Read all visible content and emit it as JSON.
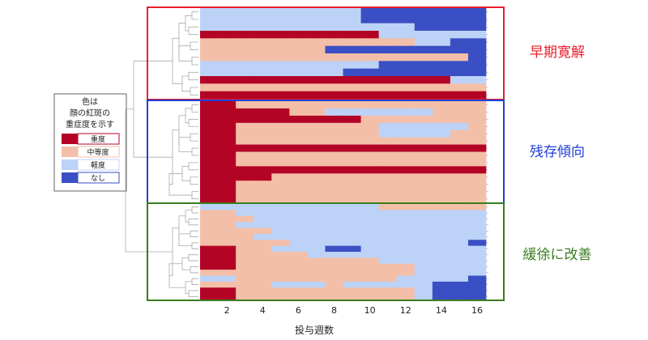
{
  "chart_data": {
    "type": "heatmap",
    "xlabel": "投与週数",
    "x_ticks": [
      "2",
      "4",
      "6",
      "8",
      "10",
      "12",
      "14",
      "16"
    ],
    "columns": 16,
    "legend": {
      "title_lines": [
        "色は",
        "顔の紅斑の",
        "重症度を示す"
      ],
      "items": [
        {
          "label": "重度",
          "level": 3
        },
        {
          "label": "中等度",
          "level": 2
        },
        {
          "label": "軽度",
          "level": 1
        },
        {
          "label": "なし",
          "level": 0
        }
      ]
    },
    "colors": {
      "level_0": "#3b4fc4",
      "level_1": "#bcd3f7",
      "level_2": "#f4bfa8",
      "level_3": "#b40426"
    },
    "groups": [
      {
        "label": "早期寛解",
        "color": "#e8202a",
        "rows": [
          [
            1,
            1,
            1,
            1,
            1,
            1,
            1,
            1,
            1,
            0,
            0,
            0,
            0,
            0,
            0,
            0
          ],
          [
            1,
            1,
            1,
            1,
            1,
            1,
            1,
            1,
            1,
            0,
            0,
            0,
            0,
            0,
            0,
            0
          ],
          [
            1,
            1,
            1,
            1,
            1,
            1,
            1,
            1,
            1,
            1,
            1,
            1,
            0,
            0,
            0,
            0
          ],
          [
            3,
            3,
            3,
            3,
            3,
            3,
            3,
            3,
            3,
            3,
            1,
            1,
            1,
            1,
            1,
            1
          ],
          [
            2,
            2,
            2,
            2,
            2,
            2,
            2,
            2,
            2,
            2,
            2,
            2,
            1,
            1,
            0,
            0
          ],
          [
            2,
            2,
            2,
            2,
            2,
            2,
            2,
            0,
            0,
            0,
            0,
            0,
            0,
            0,
            0,
            0
          ],
          [
            2,
            2,
            2,
            2,
            2,
            2,
            2,
            2,
            2,
            2,
            2,
            2,
            2,
            2,
            2,
            0
          ],
          [
            1,
            1,
            1,
            1,
            1,
            1,
            1,
            1,
            1,
            1,
            0,
            0,
            0,
            0,
            0,
            0
          ],
          [
            1,
            1,
            1,
            1,
            1,
            1,
            1,
            1,
            0,
            0,
            0,
            0,
            0,
            0,
            0,
            0
          ],
          [
            3,
            3,
            3,
            3,
            3,
            3,
            3,
            3,
            3,
            3,
            3,
            3,
            3,
            3,
            1,
            1
          ],
          [
            2,
            2,
            2,
            2,
            2,
            2,
            2,
            2,
            2,
            2,
            2,
            2,
            2,
            2,
            2,
            2
          ],
          [
            3,
            3,
            3,
            3,
            3,
            3,
            3,
            3,
            3,
            3,
            3,
            3,
            3,
            3,
            3,
            3
          ]
        ]
      },
      {
        "label": "残存傾向",
        "color": "#1f3fd9",
        "rows": [
          [
            3,
            3,
            2,
            2,
            2,
            2,
            2,
            2,
            2,
            2,
            2,
            2,
            2,
            2,
            2,
            2
          ],
          [
            3,
            3,
            3,
            3,
            3,
            2,
            2,
            1,
            1,
            1,
            1,
            1,
            1,
            2,
            2,
            2
          ],
          [
            3,
            3,
            3,
            3,
            3,
            3,
            3,
            3,
            3,
            2,
            2,
            2,
            2,
            2,
            2,
            2
          ],
          [
            3,
            3,
            2,
            2,
            2,
            2,
            2,
            2,
            2,
            2,
            1,
            1,
            1,
            1,
            1,
            2
          ],
          [
            3,
            3,
            2,
            2,
            2,
            2,
            2,
            2,
            2,
            2,
            1,
            1,
            1,
            1,
            2,
            2
          ],
          [
            3,
            3,
            2,
            2,
            2,
            2,
            2,
            2,
            2,
            2,
            2,
            2,
            2,
            2,
            2,
            2
          ],
          [
            3,
            3,
            3,
            3,
            3,
            3,
            3,
            3,
            3,
            3,
            3,
            3,
            3,
            3,
            3,
            3
          ],
          [
            3,
            3,
            2,
            2,
            2,
            2,
            2,
            2,
            2,
            2,
            2,
            2,
            2,
            2,
            2,
            2
          ],
          [
            3,
            3,
            2,
            2,
            2,
            2,
            2,
            2,
            2,
            2,
            2,
            2,
            2,
            2,
            2,
            2
          ],
          [
            3,
            3,
            3,
            3,
            3,
            3,
            3,
            3,
            3,
            3,
            3,
            3,
            3,
            3,
            3,
            3
          ],
          [
            3,
            3,
            3,
            3,
            2,
            2,
            2,
            2,
            2,
            2,
            2,
            2,
            2,
            2,
            2,
            2
          ],
          [
            3,
            3,
            2,
            2,
            2,
            2,
            2,
            2,
            2,
            2,
            2,
            2,
            2,
            2,
            2,
            2
          ],
          [
            3,
            3,
            2,
            2,
            2,
            2,
            2,
            2,
            2,
            2,
            2,
            2,
            2,
            2,
            2,
            2
          ],
          [
            3,
            3,
            2,
            2,
            2,
            2,
            2,
            2,
            2,
            2,
            2,
            2,
            2,
            2,
            2,
            2
          ]
        ]
      },
      {
        "label": "緩徐に改善",
        "color": "#3a7d1e",
        "rows": [
          [
            1,
            1,
            1,
            1,
            1,
            1,
            1,
            1,
            1,
            1,
            2,
            2,
            2,
            2,
            2,
            2
          ],
          [
            2,
            2,
            1,
            1,
            1,
            1,
            1,
            1,
            1,
            1,
            1,
            1,
            1,
            1,
            1,
            1
          ],
          [
            2,
            2,
            2,
            1,
            1,
            1,
            1,
            1,
            1,
            1,
            1,
            1,
            1,
            1,
            1,
            1
          ],
          [
            2,
            2,
            1,
            1,
            1,
            1,
            1,
            1,
            1,
            1,
            1,
            1,
            1,
            1,
            1,
            1
          ],
          [
            2,
            2,
            2,
            2,
            1,
            1,
            1,
            1,
            1,
            1,
            1,
            1,
            1,
            1,
            1,
            1
          ],
          [
            2,
            2,
            2,
            1,
            1,
            1,
            1,
            1,
            1,
            1,
            1,
            1,
            1,
            1,
            1,
            1
          ],
          [
            2,
            2,
            2,
            2,
            2,
            1,
            1,
            1,
            1,
            1,
            1,
            1,
            1,
            1,
            1,
            0
          ],
          [
            3,
            3,
            2,
            2,
            1,
            1,
            1,
            0,
            0,
            1,
            1,
            1,
            1,
            1,
            1,
            1
          ],
          [
            3,
            3,
            2,
            2,
            2,
            2,
            1,
            1,
            1,
            1,
            1,
            1,
            1,
            1,
            1,
            1
          ],
          [
            3,
            3,
            2,
            2,
            2,
            2,
            2,
            2,
            2,
            2,
            1,
            1,
            1,
            1,
            1,
            1
          ],
          [
            3,
            3,
            2,
            2,
            2,
            2,
            2,
            2,
            2,
            2,
            2,
            2,
            1,
            1,
            1,
            1
          ],
          [
            2,
            2,
            2,
            2,
            2,
            2,
            2,
            2,
            2,
            2,
            2,
            2,
            1,
            1,
            1,
            1
          ],
          [
            1,
            1,
            2,
            2,
            2,
            2,
            2,
            2,
            2,
            2,
            2,
            1,
            1,
            1,
            1,
            0
          ],
          [
            2,
            2,
            2,
            2,
            1,
            1,
            1,
            2,
            1,
            1,
            1,
            1,
            1,
            0,
            0,
            0
          ],
          [
            3,
            3,
            2,
            2,
            2,
            2,
            2,
            2,
            2,
            2,
            2,
            2,
            1,
            0,
            0,
            0
          ],
          [
            3,
            3,
            2,
            2,
            2,
            2,
            2,
            2,
            2,
            2,
            2,
            2,
            1,
            0,
            0,
            0
          ]
        ]
      }
    ]
  }
}
